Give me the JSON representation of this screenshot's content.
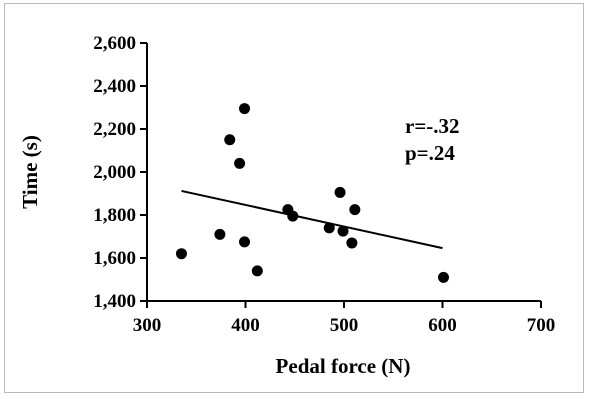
{
  "chart_data": {
    "type": "scatter",
    "title": "",
    "xlabel": "Pedal force (N)",
    "ylabel": "Time (s)",
    "xlim": [
      300,
      700
    ],
    "ylim": [
      1400,
      2600
    ],
    "xticks": [
      300,
      400,
      500,
      600,
      700
    ],
    "yticks": [
      1400,
      1600,
      1800,
      2000,
      2200,
      2400,
      2600
    ],
    "xtick_labels": [
      "300",
      "400",
      "500",
      "600",
      "700"
    ],
    "ytick_labels": [
      "1,400",
      "1,600",
      "1,800",
      "2,000",
      "2,200",
      "2,400",
      "2,600"
    ],
    "points": [
      {
        "x": 335,
        "y": 1620
      },
      {
        "x": 374,
        "y": 1710
      },
      {
        "x": 384,
        "y": 2150
      },
      {
        "x": 394,
        "y": 2040
      },
      {
        "x": 399,
        "y": 2295
      },
      {
        "x": 399,
        "y": 1675
      },
      {
        "x": 412,
        "y": 1540
      },
      {
        "x": 443,
        "y": 1825
      },
      {
        "x": 448,
        "y": 1795
      },
      {
        "x": 485,
        "y": 1740
      },
      {
        "x": 496,
        "y": 1905
      },
      {
        "x": 499,
        "y": 1725
      },
      {
        "x": 508,
        "y": 1670
      },
      {
        "x": 511,
        "y": 1825
      },
      {
        "x": 601,
        "y": 1510
      }
    ],
    "regression_line": {
      "x": [
        335,
        600
      ],
      "y": [
        1912,
        1646
      ]
    },
    "annotations": [
      "r=-.32",
      "p=.24"
    ],
    "grid": false,
    "legend": "none"
  },
  "colors": {
    "marker": "#000000",
    "line": "#000000",
    "axis": "#000000"
  }
}
